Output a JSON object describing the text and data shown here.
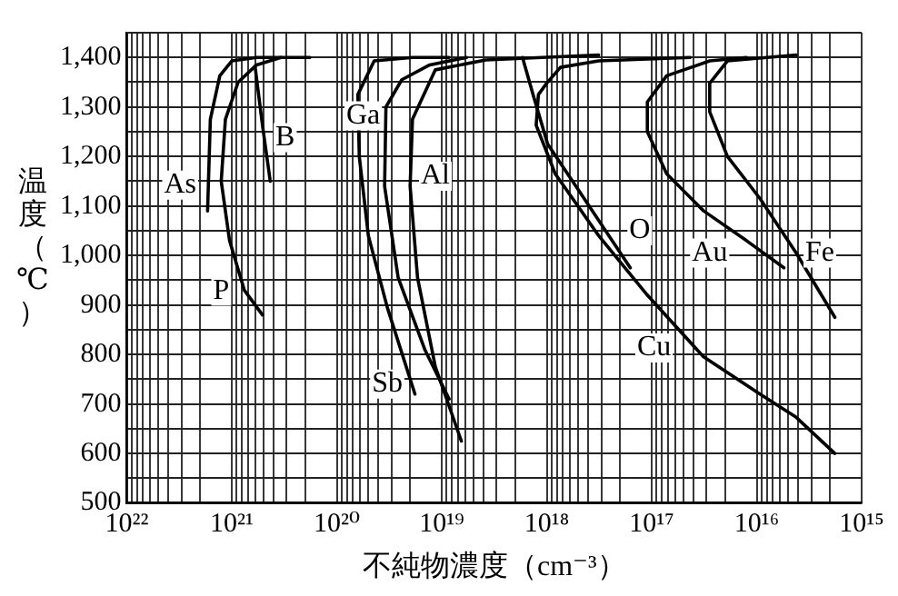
{
  "chart_data": {
    "type": "line",
    "xlabel": "不純物濃度（cm⁻³）",
    "ylabel": "温度（℃）",
    "log": "x",
    "grid": true,
    "legend": false,
    "marker": "none",
    "line_style": "solid",
    "xlim": [
      1e+22,
      1000000000000000.0
    ],
    "ylim": [
      500,
      1450
    ],
    "xticks": [
      {
        "value": 1e+22,
        "label": "10²²"
      },
      {
        "value": 1e+21,
        "label": "10²¹"
      },
      {
        "value": 1e+20,
        "label": "10²⁰"
      },
      {
        "value": 1e+19,
        "label": "10¹⁹"
      },
      {
        "value": 1e+18,
        "label": "10¹⁸"
      },
      {
        "value": 1e+17,
        "label": "10¹⁷"
      },
      {
        "value": 1e+16,
        "label": "10¹⁶"
      },
      {
        "value": 1000000000000000.0,
        "label": "10¹⁵"
      },
      {
        "value": 2e+21,
        "label": null
      },
      {
        "value": 3e+21,
        "label": null
      },
      {
        "value": 4e+21,
        "label": null
      },
      {
        "value": 5e+21,
        "label": null
      },
      {
        "value": 6e+21,
        "label": null
      },
      {
        "value": 7e+21,
        "label": null
      },
      {
        "value": 8e+21,
        "label": null
      },
      {
        "value": 9e+21,
        "label": null
      },
      {
        "value": 2e+20,
        "label": null
      },
      {
        "value": 3e+20,
        "label": null
      },
      {
        "value": 4e+20,
        "label": null
      },
      {
        "value": 5e+20,
        "label": null
      },
      {
        "value": 6e+20,
        "label": null
      },
      {
        "value": 7e+20,
        "label": null
      },
      {
        "value": 8e+20,
        "label": null
      },
      {
        "value": 9e+20,
        "label": null
      },
      {
        "value": 2e+19,
        "label": null
      },
      {
        "value": 3e+19,
        "label": null
      },
      {
        "value": 4e+19,
        "label": null
      },
      {
        "value": 5e+19,
        "label": null
      },
      {
        "value": 6e+19,
        "label": null
      },
      {
        "value": 7e+19,
        "label": null
      },
      {
        "value": 8e+19,
        "label": null
      },
      {
        "value": 9e+19,
        "label": null
      },
      {
        "value": 2e+18,
        "label": null
      },
      {
        "value": 3e+18,
        "label": null
      },
      {
        "value": 4e+18,
        "label": null
      },
      {
        "value": 5e+18,
        "label": null
      },
      {
        "value": 6e+18,
        "label": null
      },
      {
        "value": 7e+18,
        "label": null
      },
      {
        "value": 8e+18,
        "label": null
      },
      {
        "value": 9e+18,
        "label": null
      },
      {
        "value": 2e+17,
        "label": null
      },
      {
        "value": 3e+17,
        "label": null
      },
      {
        "value": 4e+17,
        "label": null
      },
      {
        "value": 5e+17,
        "label": null
      },
      {
        "value": 6e+17,
        "label": null
      },
      {
        "value": 7e+17,
        "label": null
      },
      {
        "value": 8e+17,
        "label": null
      },
      {
        "value": 9e+17,
        "label": null
      },
      {
        "value": 2e+16,
        "label": null
      },
      {
        "value": 3e+16,
        "label": null
      },
      {
        "value": 4e+16,
        "label": null
      },
      {
        "value": 5e+16,
        "label": null
      },
      {
        "value": 6e+16,
        "label": null
      },
      {
        "value": 7e+16,
        "label": null
      },
      {
        "value": 8e+16,
        "label": null
      },
      {
        "value": 9e+16,
        "label": null
      },
      {
        "value": 2000000000000000.0,
        "label": null
      },
      {
        "value": 3000000000000000.0,
        "label": null
      },
      {
        "value": 4000000000000000.0,
        "label": null
      },
      {
        "value": 5000000000000000.0,
        "label": null
      },
      {
        "value": 6000000000000000.0,
        "label": null
      },
      {
        "value": 7000000000000000.0,
        "label": null
      },
      {
        "value": 8000000000000000.0,
        "label": null
      },
      {
        "value": 9000000000000000.0,
        "label": null
      }
    ],
    "yticks": [
      {
        "value": 500,
        "label": "500"
      },
      {
        "value": 600,
        "label": "600"
      },
      {
        "value": 700,
        "label": "700"
      },
      {
        "value": 800,
        "label": "800"
      },
      {
        "value": 900,
        "label": "900"
      },
      {
        "value": 1000,
        "label": "1,000"
      },
      {
        "value": 1100,
        "label": "1,100"
      },
      {
        "value": 1200,
        "label": "1,200"
      },
      {
        "value": 1300,
        "label": "1,300"
      },
      {
        "value": 1400,
        "label": "1,400"
      },
      {
        "value": 550,
        "label": null
      },
      {
        "value": 650,
        "label": null
      },
      {
        "value": 750,
        "label": null
      },
      {
        "value": 850,
        "label": null
      },
      {
        "value": 950,
        "label": null
      },
      {
        "value": 1050,
        "label": null
      },
      {
        "value": 1150,
        "label": null
      },
      {
        "value": 1250,
        "label": null
      },
      {
        "value": 1350,
        "label": null
      },
      {
        "value": 1450,
        "label": null
      }
    ],
    "series": [
      {
        "color": "#000000",
        "x": [
          1.7e+21,
          1.6e+21,
          1.3e+21,
          1e+21,
          5.8e+20,
          3.4e+20
        ],
        "values": [
          1090,
          1275,
          1363,
          1393,
          1400,
          1400
        ]
      },
      {
        "color": "#000000",
        "x": [
          6e+20,
          5.1e+20,
          4.3e+20
        ],
        "values": [
          1382,
          1263,
          1150
        ]
      },
      {
        "color": "#000000",
        "x": [
          5.1e+20,
          7.6e+20,
          1.05e+21,
          1.26e+21,
          1.15e+21,
          8.7e+20,
          5.8e+20,
          3.4e+20,
          1.8e+20
        ],
        "values": [
          880,
          930,
          1030,
          1150,
          1275,
          1350,
          1385,
          1400,
          1400
        ]
      },
      {
        "color": "#000000",
        "x": [
          1.8e+19,
          3.3e+19,
          5e+19,
          6.1e+19,
          6.3e+19,
          4.4e+19,
          1.9e+19,
          8.5e+18
        ],
        "values": [
          720,
          895,
          1040,
          1200,
          1325,
          1393,
          1400,
          1400
        ]
      },
      {
        "color": "#000000",
        "x": [
          8.5e+18,
          1.45e+19,
          2.6e+19,
          3.5e+19,
          3.4e+19,
          2.4e+19,
          1.3e+19,
          5.8e+18
        ],
        "values": [
          710,
          810,
          955,
          1140,
          1300,
          1355,
          1385,
          1400
        ]
      },
      {
        "color": "#000000",
        "x": [
          6.5e+18,
          1.15e+19,
          1.7e+19,
          2e+19,
          1.9e+19,
          1.15e+19,
          3.8e+18,
          3.2e+17
        ],
        "values": [
          625,
          775,
          955,
          1140,
          1275,
          1375,
          1395,
          1405
        ]
      },
      {
        "color": "#000000",
        "x": [
          1.7e+18,
          1.35e+18,
          9.8e+17,
          4.4e+17,
          1.6e+17
        ],
        "values": [
          1400,
          1325,
          1225,
          1115,
          975
        ]
      },
      {
        "color": "#000000",
        "x": [
          4.3e+16,
          3.2e+17,
          7.4e+17,
          1e+18,
          1.2e+18,
          1.26e+18,
          8.3e+17,
          3.2e+17,
          1.1e+17,
          3.2e+16,
          9300000000000000.0,
          4200000000000000.0,
          1800000000000000.0
        ],
        "values": [
          1400,
          1393,
          1380,
          1348,
          1325,
          1263,
          1165,
          1040,
          920,
          795,
          720,
          673,
          600
        ]
      },
      {
        "color": "#000000",
        "x": [
          1.25e+16,
          2.8e+16,
          7.2e+16,
          1.1e+17,
          1.1e+17,
          7.2e+16,
          3.2e+16,
          1.25e+16,
          5500000000000000.0
        ],
        "values": [
          1400,
          1393,
          1363,
          1310,
          1250,
          1165,
          1090,
          1030,
          975
        ]
      },
      {
        "color": "#000000",
        "x": [
          4200000000000000.0,
          1.9e+16,
          2.8e+16,
          2.8e+16,
          1.9e+16,
          9300000000000000.0,
          4200000000000000.0,
          1800000000000000.0
        ],
        "values": [
          1405,
          1393,
          1348,
          1290,
          1200,
          1115,
          1005,
          875
        ]
      }
    ],
    "annotations": [
      {
        "text": "As",
        "x": 3.1e+21,
        "y": 1142
      },
      {
        "text": "B",
        "x": 3.1e+20,
        "y": 1238
      },
      {
        "text": "P",
        "x": 1.26e+21,
        "y": 928
      },
      {
        "text": "Ga",
        "x": 5.6e+19,
        "y": 1282
      },
      {
        "text": "Al",
        "x": 1.15e+19,
        "y": 1160
      },
      {
        "text": "Sb",
        "x": 3.3e+19,
        "y": 740
      },
      {
        "text": "O",
        "x": 1.3e+17,
        "y": 1050
      },
      {
        "text": "Au",
        "x": 2.8e+16,
        "y": 1005
      },
      {
        "text": "Fe",
        "x": 2500000000000000.0,
        "y": 1005
      },
      {
        "text": "Cu",
        "x": 9.5e+16,
        "y": 813
      }
    ]
  }
}
